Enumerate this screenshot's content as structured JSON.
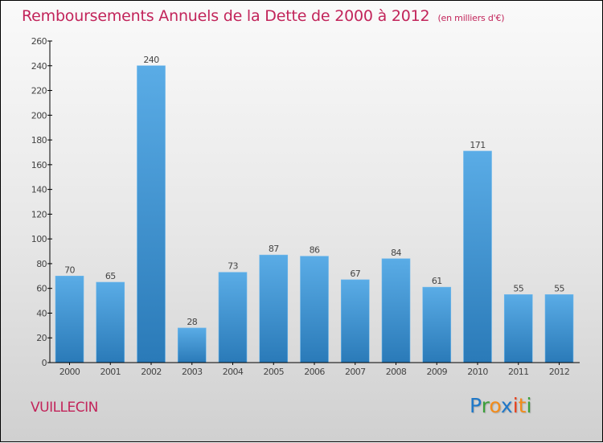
{
  "title": "Remboursements Annuels de la Dette de 2000 à 2012",
  "unit": "(en milliers d'€)",
  "commune": "VUILLECIN",
  "logo": {
    "letters": [
      {
        "ch": "P",
        "color": "#1f78c8"
      },
      {
        "ch": "r",
        "color": "#3aa03a"
      },
      {
        "ch": "o",
        "color": "#f28c1c"
      },
      {
        "ch": "x",
        "color": "#1f78c8"
      },
      {
        "ch": "i",
        "color": "#e8401c"
      },
      {
        "ch": "t",
        "color": "#f28c1c"
      },
      {
        "ch": "i",
        "color": "#3aa03a"
      }
    ]
  },
  "colors": {
    "accent": "#c2245a",
    "bar_top": "#5aace6",
    "bar_bottom": "#2a7ab8"
  },
  "chart_data": {
    "type": "bar",
    "title": "Remboursements Annuels de la Dette de 2000 à 2012",
    "subtitle": "(en milliers d'€)",
    "xlabel": "",
    "ylabel": "",
    "categories": [
      "2000",
      "2001",
      "2002",
      "2003",
      "2004",
      "2005",
      "2006",
      "2007",
      "2008",
      "2009",
      "2010",
      "2011",
      "2012"
    ],
    "values": [
      70,
      65,
      240,
      28,
      73,
      87,
      86,
      67,
      84,
      61,
      171,
      55,
      55
    ],
    "ylim": [
      0,
      260
    ],
    "yticks": [
      0,
      20,
      40,
      60,
      80,
      100,
      120,
      140,
      160,
      180,
      200,
      220,
      240,
      260
    ],
    "grid": false,
    "legend": "none"
  }
}
